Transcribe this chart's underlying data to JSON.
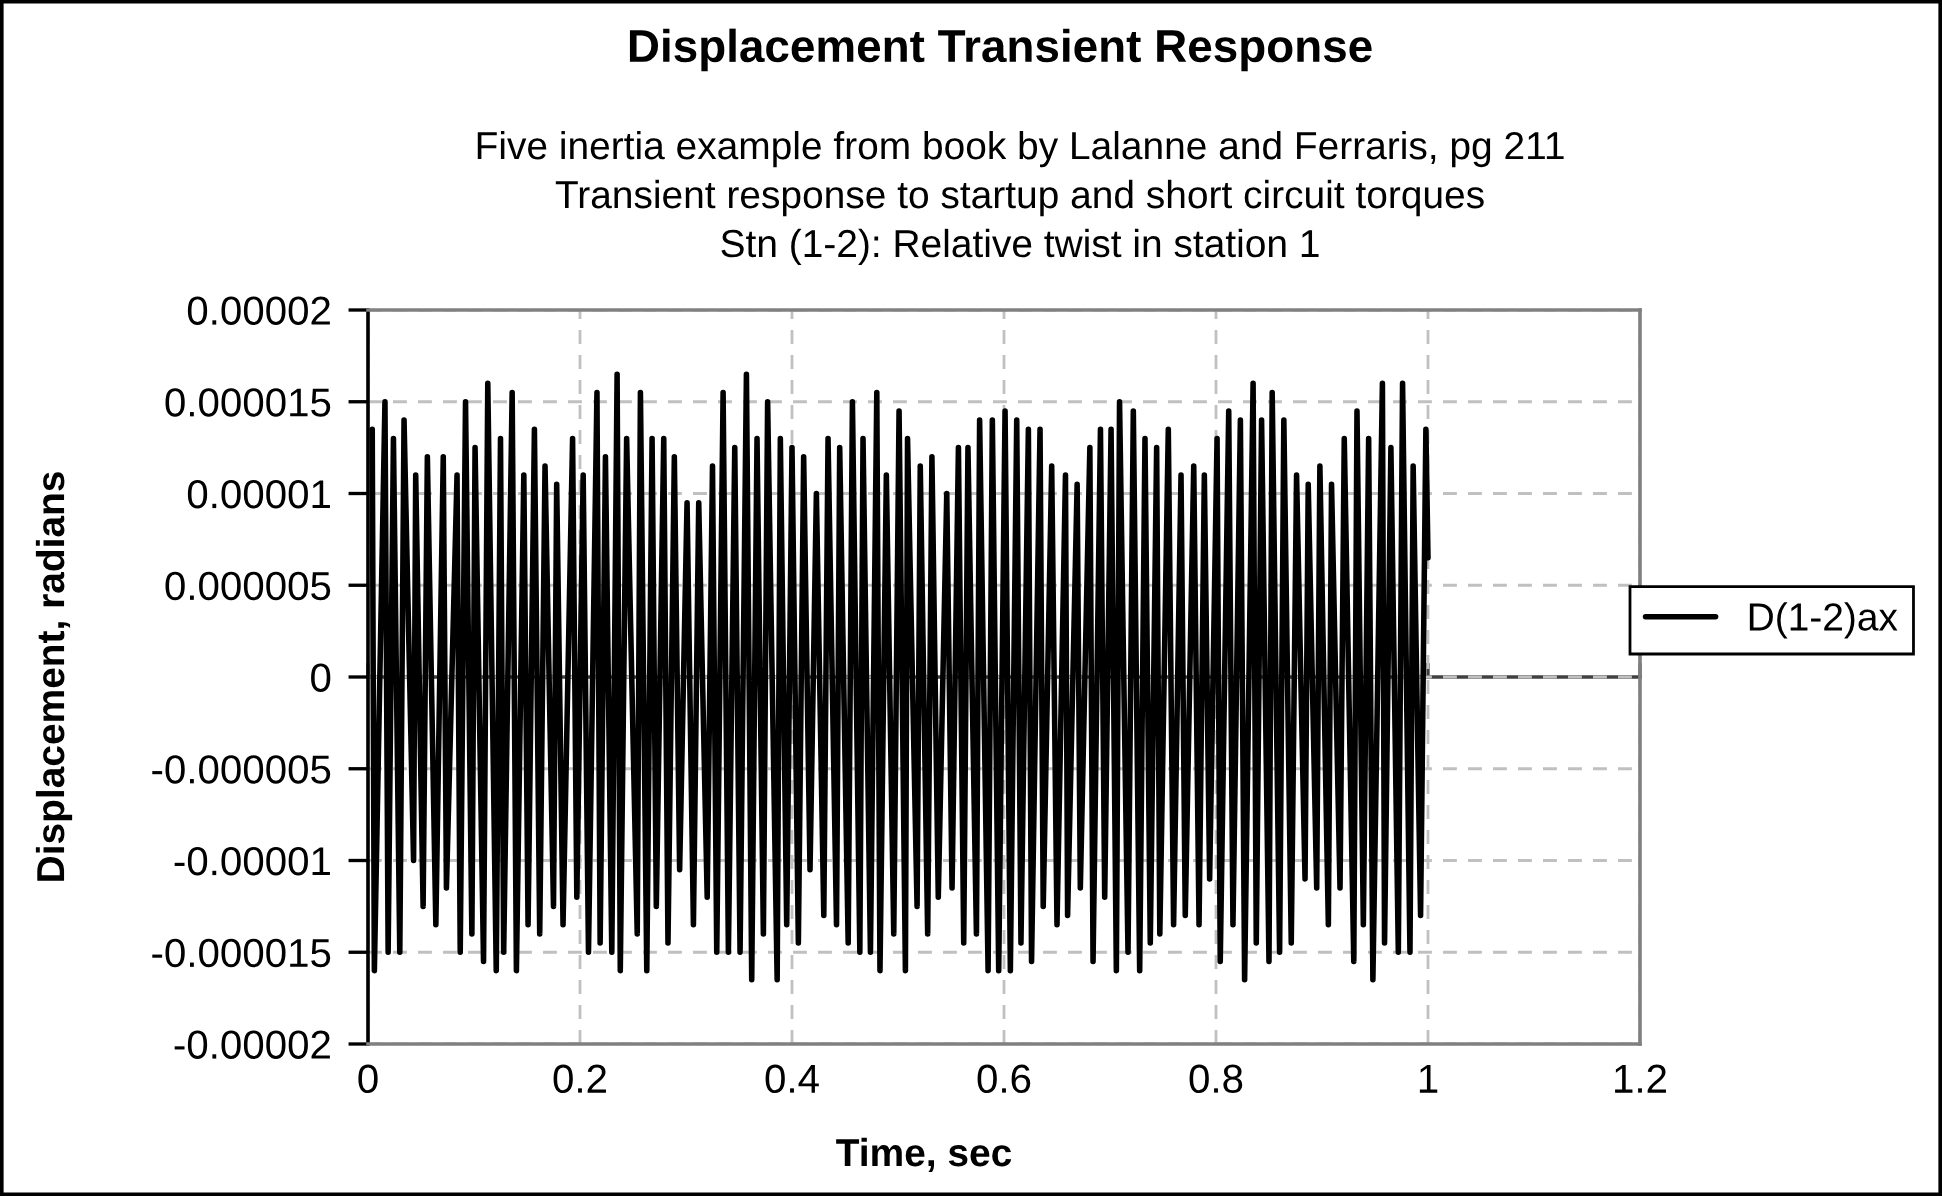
{
  "chart_data": {
    "type": "line",
    "title": "Displacement Transient Response",
    "subtitle": "Five inertia example from book by Lalanne and Ferraris, pg 211\nTransient response to startup and short circuit torques\nStn (1-2): Relative twist in station 1",
    "xlabel": "Time, sec",
    "ylabel": "Displacement, radians",
    "xlim": [
      0,
      1.2
    ],
    "xticks": [
      0,
      0.2,
      0.4,
      0.6,
      0.8,
      1,
      1.2
    ],
    "ylim": [
      -2e-05,
      2e-05
    ],
    "yticks": [
      {
        "value": -2e-05,
        "label": "-0.00002"
      },
      {
        "value": -1.5e-05,
        "label": "-0.000015"
      },
      {
        "value": -1e-05,
        "label": "-0.00001"
      },
      {
        "value": -5e-06,
        "label": "-0.000005"
      },
      0,
      {
        "value": 5e-06,
        "label": "0.000005"
      },
      {
        "value": 1e-05,
        "label": "0.00001"
      },
      {
        "value": 1.5e-05,
        "label": "0.000015"
      },
      {
        "value": 2e-05,
        "label": "0.00002"
      }
    ],
    "grid": true,
    "legend": "right",
    "x": [
      0.004,
      0.006,
      0.016,
      0.019,
      0.024,
      0.03,
      0.034,
      0.043,
      0.045,
      0.052,
      0.056,
      0.064,
      0.071,
      0.074,
      0.084,
      0.087,
      0.092,
      0.098,
      0.101,
      0.109,
      0.113,
      0.121,
      0.125,
      0.128,
      0.136,
      0.14,
      0.147,
      0.151,
      0.157,
      0.162,
      0.167,
      0.175,
      0.178,
      0.184,
      0.193,
      0.197,
      0.203,
      0.208,
      0.216,
      0.219,
      0.224,
      0.23,
      0.235,
      0.238,
      0.244,
      0.254,
      0.257,
      0.263,
      0.268,
      0.272,
      0.279,
      0.283,
      0.289,
      0.294,
      0.301,
      0.307,
      0.312,
      0.32,
      0.325,
      0.329,
      0.335,
      0.34,
      0.346,
      0.351,
      0.357,
      0.362,
      0.367,
      0.373,
      0.377,
      0.386,
      0.389,
      0.395,
      0.4,
      0.406,
      0.411,
      0.417,
      0.423,
      0.43,
      0.434,
      0.442,
      0.445,
      0.453,
      0.457,
      0.464,
      0.467,
      0.474,
      0.48,
      0.483,
      0.489,
      0.496,
      0.501,
      0.507,
      0.509,
      0.518,
      0.521,
      0.528,
      0.532,
      0.538,
      0.546,
      0.551,
      0.557,
      0.562,
      0.566,
      0.574,
      0.577,
      0.585,
      0.589,
      0.595,
      0.601,
      0.606,
      0.612,
      0.616,
      0.623,
      0.626,
      0.634,
      0.637,
      0.645,
      0.65,
      0.658,
      0.66,
      0.669,
      0.672,
      0.681,
      0.684,
      0.691,
      0.695,
      0.701,
      0.706,
      0.709,
      0.717,
      0.722,
      0.728,
      0.733,
      0.738,
      0.744,
      0.747,
      0.755,
      0.76,
      0.767,
      0.771,
      0.779,
      0.784,
      0.789,
      0.794,
      0.801,
      0.804,
      0.812,
      0.816,
      0.823,
      0.827,
      0.835,
      0.838,
      0.843,
      0.85,
      0.853,
      0.86,
      0.864,
      0.871,
      0.876,
      0.884,
      0.887,
      0.895,
      0.898,
      0.906,
      0.909,
      0.917,
      0.921,
      0.93,
      0.933,
      0.939,
      0.944,
      0.948,
      0.957,
      0.959,
      0.965,
      0.972,
      0.976,
      0.983,
      0.986,
      0.993,
      0.998,
      1.0
    ],
    "series": [
      {
        "name": "D(1-2)ax",
        "color": "#000000",
        "values": [
          1.35e-05,
          -1.6e-05,
          1.5e-05,
          -1.5e-05,
          1.3e-05,
          -1.5e-05,
          1.4e-05,
          -1e-05,
          1.1e-05,
          -1.25e-05,
          1.2e-05,
          -1.35e-05,
          1.2e-05,
          -1.15e-05,
          1.1e-05,
          -1.5e-05,
          1.5e-05,
          -1.4e-05,
          1.25e-05,
          -1.55e-05,
          1.6e-05,
          -1.6e-05,
          1.3e-05,
          -1.5e-05,
          1.55e-05,
          -1.6e-05,
          1.1e-05,
          -1.35e-05,
          1.35e-05,
          -1.4e-05,
          1.15e-05,
          -1.25e-05,
          1.05e-05,
          -1.35e-05,
          1.3e-05,
          -1.2e-05,
          1.1e-05,
          -1.5e-05,
          1.55e-05,
          -1.45e-05,
          1.2e-05,
          -1.5e-05,
          1.65e-05,
          -1.6e-05,
          1.3e-05,
          -1.4e-05,
          1.55e-05,
          -1.6e-05,
          1.3e-05,
          -1.25e-05,
          1.3e-05,
          -1.45e-05,
          1.2e-05,
          -1.05e-05,
          9.5e-06,
          -1.35e-05,
          9.5e-06,
          -1.2e-05,
          1.15e-05,
          -1.5e-05,
          1.55e-05,
          -1.5e-05,
          1.25e-05,
          -1.5e-05,
          1.65e-05,
          -1.65e-05,
          1.3e-05,
          -1.4e-05,
          1.5e-05,
          -1.65e-05,
          1.3e-05,
          -1.35e-05,
          1.25e-05,
          -1.45e-05,
          1.2e-05,
          -1.05e-05,
          1e-05,
          -1.3e-05,
          1.3e-05,
          -1.35e-05,
          1.25e-05,
          -1.45e-05,
          1.5e-05,
          -1.5e-05,
          1.3e-05,
          -1.5e-05,
          1.55e-05,
          -1.6e-05,
          1.1e-05,
          -1.4e-05,
          1.45e-05,
          -1.6e-05,
          1.3e-05,
          -1.25e-05,
          1.15e-05,
          -1.4e-05,
          1.2e-05,
          -1.2e-05,
          1e-05,
          -1.15e-05,
          1.25e-05,
          -1.45e-05,
          1.25e-05,
          -1.4e-05,
          1.4e-05,
          -1.6e-05,
          1.4e-05,
          -1.6e-05,
          1.45e-05,
          -1.6e-05,
          1.4e-05,
          -1.45e-05,
          1.35e-05,
          -1.55e-05,
          1.35e-05,
          -1.25e-05,
          1.15e-05,
          -1.35e-05,
          1.1e-05,
          -1.3e-05,
          1.05e-05,
          -1.15e-05,
          1.25e-05,
          -1.55e-05,
          1.35e-05,
          -1.2e-05,
          1.35e-05,
          -1.6e-05,
          1.5e-05,
          -1.5e-05,
          1.45e-05,
          -1.6e-05,
          1.3e-05,
          -1.45e-05,
          1.25e-05,
          -1.4e-05,
          1.35e-05,
          -1.35e-05,
          1.1e-05,
          -1.3e-05,
          1.15e-05,
          -1.35e-05,
          1.1e-05,
          -1.1e-05,
          1.3e-05,
          -1.55e-05,
          1.45e-05,
          -1.35e-05,
          1.4e-05,
          -1.65e-05,
          1.6e-05,
          -1.45e-05,
          1.4e-05,
          -1.55e-05,
          1.55e-05,
          -1.5e-05,
          1.4e-05,
          -1.45e-05,
          1.1e-05,
          -1.1e-05,
          1.05e-05,
          -1.15e-05,
          1.15e-05,
          -1.35e-05,
          1.05e-05,
          -1.15e-05,
          1.3e-05,
          -1.55e-05,
          1.45e-05,
          -1.35e-05,
          1.3e-05,
          -1.65e-05,
          1.6e-05,
          -1.45e-05,
          1.25e-05,
          -1.5e-05,
          1.6e-05,
          -1.5e-05,
          1.15e-05,
          -1.3e-05,
          1.35e-05,
          6.5e-06
        ]
      }
    ]
  }
}
